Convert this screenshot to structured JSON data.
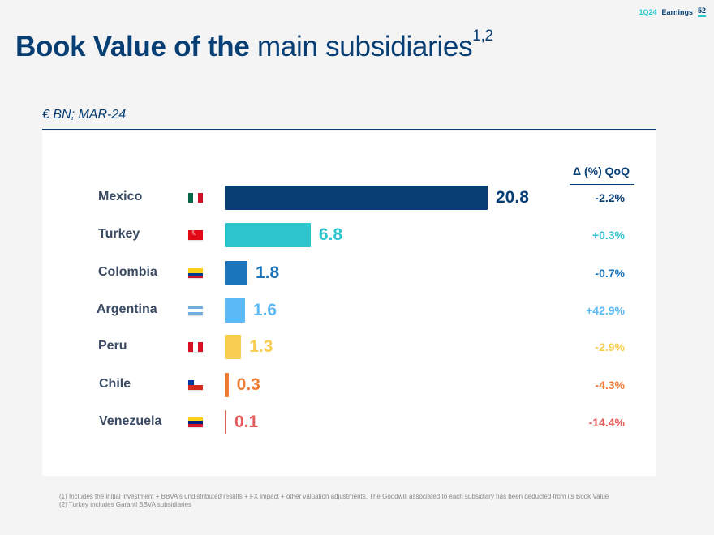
{
  "header": {
    "tag": "1Q24",
    "label": "Earnings",
    "page": "52"
  },
  "title": {
    "bold": "Book Value of the",
    "light": "main subsidiaries",
    "sup": "1,2"
  },
  "unit_label": "€ BN; MAR-24",
  "qoq_header": "Δ (%) QoQ",
  "chart_data": {
    "type": "bar",
    "orientation": "horizontal",
    "title": "Book Value of the main subsidiaries",
    "unit": "€ BN; MAR-24",
    "categories": [
      "Mexico",
      "Turkey",
      "Colombia",
      "Argentina",
      "Peru",
      "Chile",
      "Venezuela"
    ],
    "values": [
      20.8,
      6.8,
      1.8,
      1.6,
      1.3,
      0.3,
      0.1
    ],
    "value_labels": [
      "20.8",
      "6.8",
      "1.8",
      "1.6",
      "1.3",
      "0.3",
      "0.1"
    ],
    "qoq_change": [
      "-2.2%",
      "+0.3%",
      "-0.7%",
      "+42.9%",
      "-2.9%",
      "-4.3%",
      "-14.4%"
    ],
    "colors": [
      "#073e74",
      "#2dc6cf",
      "#1b75bc",
      "#5bbaf5",
      "#f8cd51",
      "#f07d34",
      "#e45b5b"
    ],
    "flags": [
      "mexico-flag-icon",
      "turkey-flag-icon",
      "colombia-flag-icon",
      "argentina-flag-icon",
      "peru-flag-icon",
      "chile-flag-icon",
      "venezuela-flag-icon"
    ]
  },
  "footnotes": [
    "(1) Includes the initial investment + BBVA's undistributed results  + FX impact  + other valuation adjustments. The Goodwill associated to each subsidiary has been deducted from its Book Value",
    "(2) Turkey includes Garanti BBVA subsidiaries"
  ]
}
